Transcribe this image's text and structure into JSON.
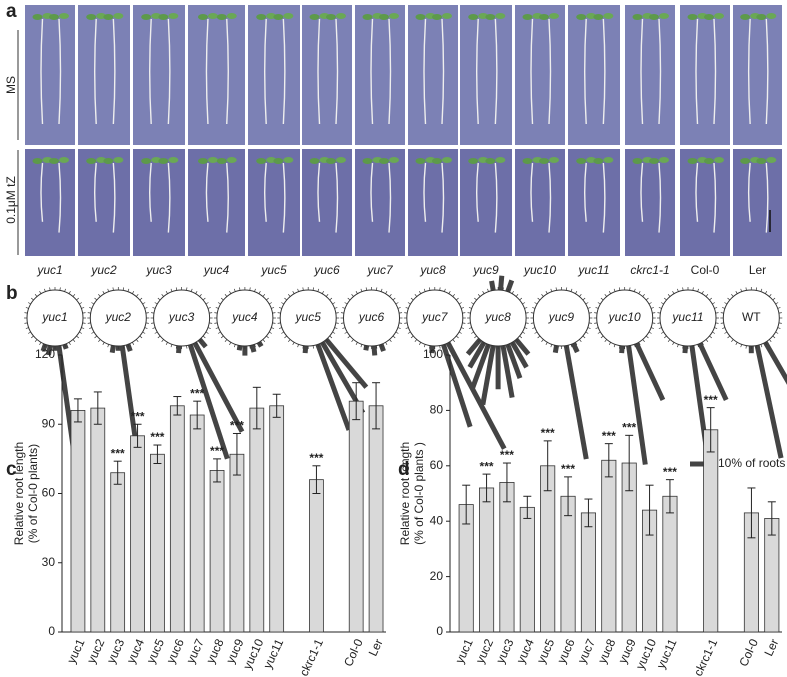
{
  "panel_a": {
    "label": "a",
    "rows": [
      "MS",
      "0.1μM tZ"
    ],
    "genotypes": [
      "yuc1",
      "yuc2",
      "yuc3",
      "yuc4",
      "yuc5",
      "yuc6",
      "yuc7",
      "yuc8",
      "yuc9",
      "yuc10",
      "yuc11",
      "ckrc1-1",
      "Col-0",
      "Ler"
    ]
  },
  "chart_data": [
    {
      "type": "rose",
      "label": "b",
      "legend": "10% of roots",
      "plots": [
        {
          "name": "yuc1",
          "angles": [
            -20,
            -10,
            0,
            8,
            20
          ],
          "values": [
            3,
            4,
            2,
            50,
            2
          ]
        },
        {
          "name": "yuc2",
          "angles": [
            -10,
            0,
            8,
            20
          ],
          "values": [
            3,
            2,
            50,
            3
          ]
        },
        {
          "name": "yuc3",
          "angles": [
            -5,
            18,
            28,
            40
          ],
          "values": [
            3,
            50,
            42,
            4
          ]
        },
        {
          "name": "yuc4",
          "angles": [
            -10,
            0,
            15,
            30
          ],
          "values": [
            2,
            4,
            3,
            2
          ]
        },
        {
          "name": "yuc5",
          "angles": [
            -5,
            20,
            30,
            40
          ],
          "values": [
            3,
            38,
            34,
            26
          ]
        },
        {
          "name": "yuc6",
          "angles": [
            -10,
            5,
            20
          ],
          "values": [
            2,
            4,
            3
          ]
        },
        {
          "name": "yuc7",
          "angles": [
            -5,
            18,
            28
          ],
          "values": [
            3,
            36,
            50
          ]
        },
        {
          "name": "yuc8",
          "angles": [
            -40,
            -30,
            -20,
            -10,
            0,
            10,
            20,
            30,
            40,
            160,
            175,
            190
          ],
          "values": [
            8,
            12,
            20,
            25,
            18,
            22,
            15,
            12,
            8,
            5,
            6,
            4
          ]
        },
        {
          "name": "yuc9",
          "angles": [
            -10,
            10,
            25
          ],
          "values": [
            3,
            48,
            4
          ]
        },
        {
          "name": "yuc10",
          "angles": [
            -5,
            8,
            25
          ],
          "values": [
            3,
            50,
            26
          ]
        },
        {
          "name": "yuc11",
          "angles": [
            -5,
            8,
            25
          ],
          "values": [
            3,
            46,
            26
          ]
        },
        {
          "name": "WT",
          "angles": [
            0,
            12,
            30
          ],
          "values": [
            3,
            48,
            28
          ]
        }
      ]
    },
    {
      "type": "bar",
      "label": "c",
      "ylabel": [
        "Relative root length",
        "(% of Col-0 plants)"
      ],
      "categories": [
        "yuc1",
        "yuc2",
        "yuc3",
        "yuc4",
        "yuc5",
        "yuc6",
        "yuc7",
        "yuc8",
        "yuc9",
        "yuc10",
        "yuc11",
        null,
        "ckrc1-1",
        null,
        "Col-0",
        "Ler"
      ],
      "values": [
        96,
        97,
        69,
        85,
        77,
        98,
        94,
        70,
        77,
        97,
        98,
        null,
        66,
        null,
        100,
        98
      ],
      "errors": [
        5,
        7,
        5,
        5,
        4,
        4,
        6,
        5,
        9,
        9,
        5,
        null,
        6,
        null,
        8,
        10
      ],
      "significance": [
        null,
        null,
        "***",
        "***",
        "***",
        null,
        "***",
        "***",
        "***",
        null,
        null,
        null,
        "***",
        null,
        null,
        null
      ],
      "ylim": [
        0,
        120
      ],
      "yticks": [
        0,
        30,
        60,
        90,
        120
      ],
      "color": "#d9d9d9"
    },
    {
      "type": "bar",
      "label": "d",
      "ylabel": [
        "Relative root length",
        "(% of Col-0 plants )"
      ],
      "categories": [
        "yuc1",
        "yuc2",
        "yuc3",
        "yuc4",
        "yuc5",
        "yuc6",
        "yuc7",
        "yuc8",
        "yuc9",
        "yuc10",
        "yuc11",
        null,
        "ckrc1-1",
        null,
        "Col-0",
        "Ler"
      ],
      "values": [
        46,
        52,
        54,
        45,
        60,
        49,
        43,
        62,
        61,
        44,
        49,
        null,
        73,
        null,
        43,
        41
      ],
      "errors": [
        7,
        5,
        7,
        4,
        9,
        7,
        5,
        6,
        10,
        9,
        6,
        null,
        8,
        null,
        9,
        6
      ],
      "significance": [
        null,
        "***",
        "***",
        null,
        "***",
        "***",
        null,
        "***",
        "***",
        null,
        "***",
        null,
        "***",
        null,
        null,
        null
      ],
      "ylim": [
        0,
        100
      ],
      "yticks": [
        0,
        20,
        40,
        60,
        80,
        100
      ],
      "color": "#d9d9d9"
    }
  ]
}
